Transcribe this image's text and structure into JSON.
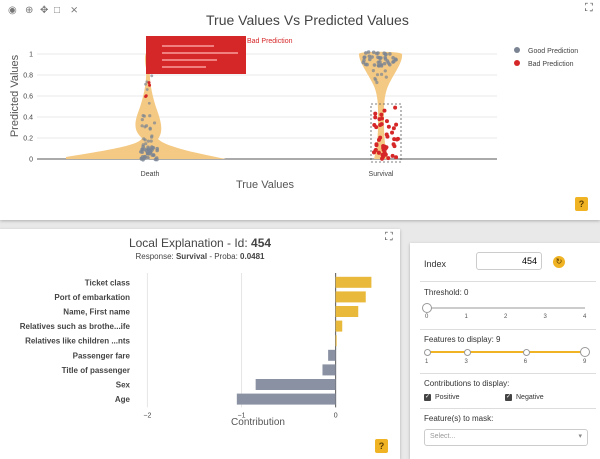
{
  "toolbar": {
    "icons": [
      "camera-icon",
      "zoom-icon",
      "pan-icon",
      "box-select-icon",
      "autoscale-icon"
    ]
  },
  "top_chart": {
    "title": "True Values Vs Predicted Values",
    "xlabel": "True Values",
    "ylabel": "Predicted Values",
    "categories": [
      "Death",
      "Survival"
    ],
    "y_ticks": [
      "0",
      "0.2",
      "0.4",
      "0.6",
      "0.8",
      "1"
    ],
    "legend": [
      {
        "label": "Good Prediction",
        "color": "#7b8493"
      },
      {
        "label": "Bad Prediction",
        "color": "#d62728"
      }
    ],
    "tooltip_title": "Bad Prediction",
    "violin_color": "#f4c983",
    "help_label": "?"
  },
  "local_explanation": {
    "title_prefix": "Local Explanation - Id: ",
    "id": "454",
    "response_label": "Response: ",
    "response_value": "Survival",
    "proba_label": " - Proba: ",
    "proba_value": "0.0481",
    "help_label": "?"
  },
  "chart_data": {
    "type": "bar",
    "orientation": "horizontal",
    "categories": [
      "Ticket class",
      "Port of embarkation",
      "Name, First name",
      "Relatives such as brothe...ife",
      "Relatives like children ...nts",
      "Passenger fare",
      "Title of passenger",
      "Sex",
      "Age"
    ],
    "values": [
      0.38,
      0.32,
      0.24,
      0.07,
      0.01,
      -0.08,
      -0.14,
      -0.85,
      -1.05
    ],
    "xlabel": "Contribution",
    "x_ticks": [
      -2,
      -1,
      0
    ],
    "x_tick_labels": [
      "−2",
      "−1",
      "0"
    ],
    "xlim": [
      -2.1,
      0.45
    ],
    "positive_color": "#e8b93a",
    "negative_color": "#8a91a3"
  },
  "controls": {
    "index_label": "Index",
    "index_value": "454",
    "threshold_label": "Threshold: 0",
    "threshold_ticks": [
      "0",
      "1",
      "2",
      "3",
      "4"
    ],
    "threshold_value": 0,
    "features_label": "Features to display: 9",
    "features_ticks": [
      "1",
      "3",
      "6",
      "9"
    ],
    "features_value": 9,
    "contributions_label": "Contributions to display:",
    "positive_label": "Positive",
    "negative_label": "Negative",
    "mask_label": "Feature(s) to mask:",
    "mask_placeholder": "Select..."
  }
}
